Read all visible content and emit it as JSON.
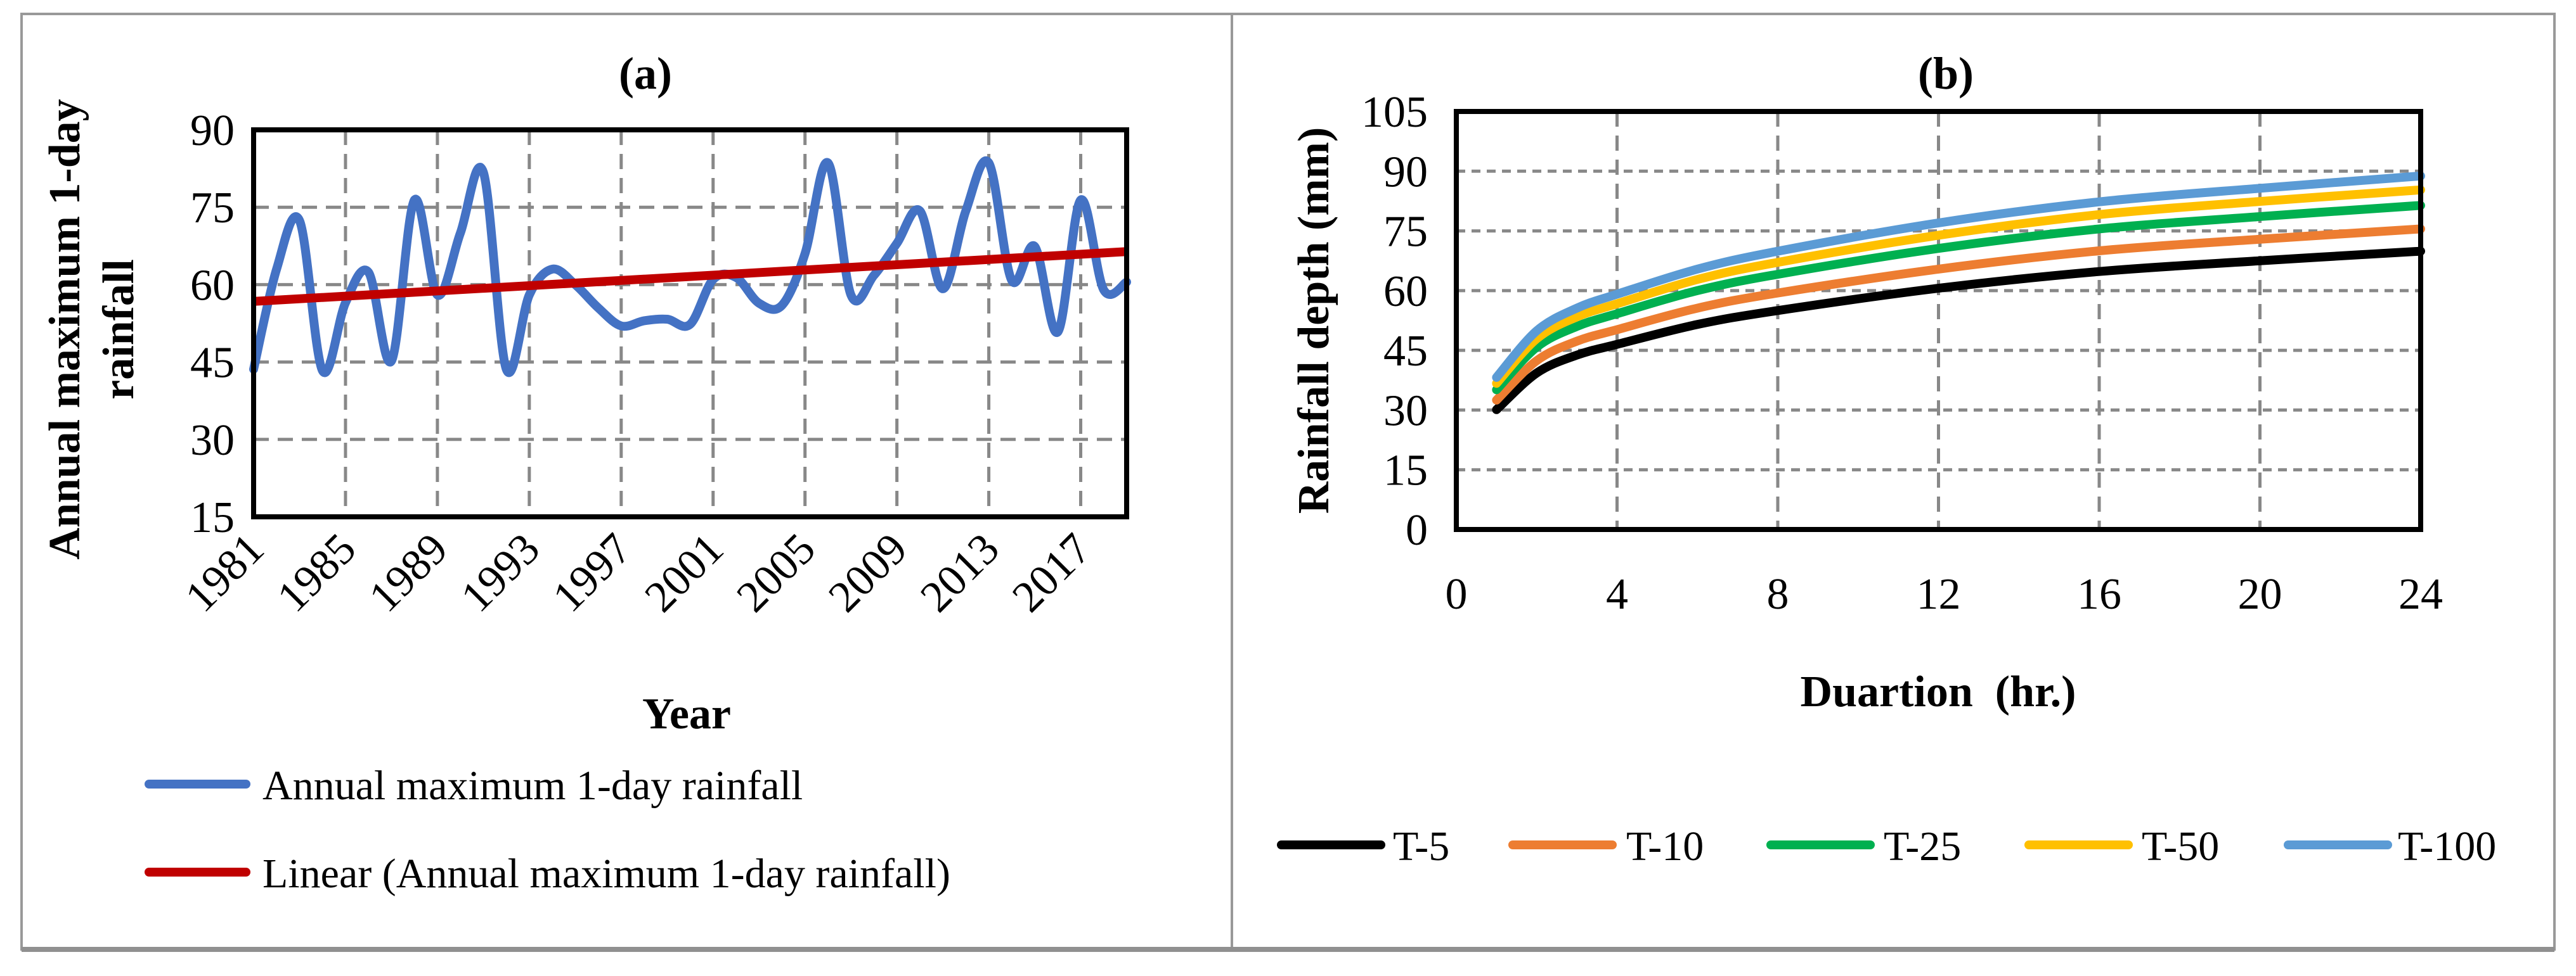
{
  "chart_data": [
    {
      "type": "line",
      "title": "(a)",
      "xlabel": "Year",
      "ylabel_lines": [
        "Annual maximum 1-day",
        "rainfall"
      ],
      "xlim": [
        1981,
        2019
      ],
      "ylim": [
        15,
        90
      ],
      "yticks": [
        15,
        30,
        45,
        60,
        75,
        90
      ],
      "xticks": [
        1981,
        1985,
        1989,
        1993,
        1997,
        2001,
        2005,
        2009,
        2013,
        2017
      ],
      "grid": true,
      "legend_position": "bottom",
      "series": [
        {
          "name": "Annual maximum 1-day rainfall",
          "color": "#4472C4",
          "smooth": true,
          "x": [
            1981,
            1982,
            1983,
            1984,
            1985,
            1986,
            1987,
            1988,
            1989,
            1990,
            1991,
            1992,
            1993,
            1994,
            1995,
            1996,
            1997,
            1998,
            1999,
            2000,
            2001,
            2002,
            2003,
            2004,
            2005,
            2006,
            2007,
            2008,
            2009,
            2010,
            2011,
            2012,
            2013,
            2014,
            2015,
            2016,
            2017,
            2018,
            2019
          ],
          "y": [
            43.6,
            63,
            72.4,
            43.3,
            56.5,
            62.4,
            45.2,
            76.4,
            58,
            70,
            81.8,
            43.6,
            58,
            63,
            60,
            55.5,
            52,
            53,
            53.3,
            52.3,
            61,
            61.4,
            56.4,
            56,
            66,
            83.6,
            58,
            61.8,
            68,
            74.3,
            59.2,
            74.3,
            83.6,
            60.8,
            67.4,
            50.8,
            76.4,
            59,
            60.5
          ]
        },
        {
          "name": "Linear (Annual maximum 1-day rainfall)",
          "color": "#C00000",
          "x": [
            1981,
            2019
          ],
          "y": [
            56.75,
            66.4
          ]
        }
      ]
    },
    {
      "type": "line",
      "title": "(b)",
      "xlabel": "Duartion  (hr.)",
      "ylabel": "Rainfall depth (mm)",
      "xlim": [
        0,
        24
      ],
      "ylim": [
        0,
        105
      ],
      "xticks": [
        0,
        4,
        8,
        12,
        16,
        20,
        24
      ],
      "yticks": [
        0,
        15,
        30,
        45,
        60,
        75,
        90,
        105
      ],
      "grid": true,
      "legend_position": "bottom",
      "x": [
        1,
        2,
        3,
        4,
        6,
        8,
        12,
        16,
        20,
        24
      ],
      "series": [
        {
          "name": "T-5",
          "color": "#000000",
          "values": [
            30.1,
            39.3,
            43.8,
            46.5,
            51.5,
            55.0,
            60.6,
            64.8,
            67.5,
            69.9
          ]
        },
        {
          "name": "T-10",
          "color": "#ED7D31",
          "values": [
            32.5,
            42.4,
            47.3,
            50.2,
            55.6,
            59.4,
            65.4,
            70.0,
            72.9,
            75.5
          ]
        },
        {
          "name": "T-25",
          "color": "#00B050",
          "values": [
            35.1,
            45.8,
            51.0,
            54.2,
            60.0,
            64.1,
            70.6,
            75.5,
            78.6,
            81.4
          ]
        },
        {
          "name": "T-50",
          "color": "#FFC000",
          "values": [
            36.7,
            47.9,
            53.4,
            56.7,
            62.8,
            67.1,
            73.9,
            79.1,
            82.4,
            85.3
          ]
        },
        {
          "name": "T-100",
          "color": "#5B9BD5",
          "values": [
            38.2,
            49.9,
            55.6,
            59.1,
            65.4,
            69.9,
            77.0,
            82.3,
            85.7,
            88.8
          ]
        }
      ]
    }
  ]
}
